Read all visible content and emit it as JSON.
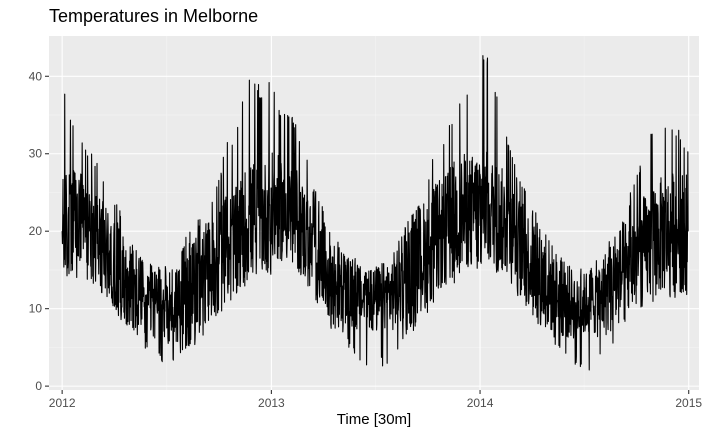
{
  "chart_data": {
    "type": "line",
    "title": "Temperatures in Melborne",
    "xlabel": "Time [30m]",
    "ylabel": "",
    "x_ticks": [
      "2012",
      "2013",
      "2014",
      "2015"
    ],
    "y_ticks": [
      0,
      10,
      20,
      30,
      40
    ],
    "xlim": [
      "2011-12-09",
      "2015-01-19"
    ],
    "ylim": [
      -0.5,
      45.2
    ],
    "grid": true,
    "legend": "none",
    "colors": {
      "line": "#000000",
      "panel": "#ebebeb",
      "grid": "#ffffff"
    },
    "series": [
      {
        "interval": "30 minutes",
        "x": [
          "2012-01-01",
          "2012-01-15",
          "2012-02-01",
          "2012-02-15",
          "2012-03-01",
          "2012-03-15",
          "2012-04-01",
          "2012-04-15",
          "2012-05-01",
          "2012-05-15",
          "2012-06-01",
          "2012-06-15",
          "2012-07-01",
          "2012-07-15",
          "2012-08-01",
          "2012-08-15",
          "2012-09-01",
          "2012-09-15",
          "2012-10-01",
          "2012-10-15",
          "2012-11-01",
          "2012-11-15",
          "2012-12-01",
          "2012-12-15",
          "2013-01-01",
          "2013-01-15",
          "2013-02-01",
          "2013-02-15",
          "2013-03-01",
          "2013-03-15",
          "2013-04-01",
          "2013-04-15",
          "2013-05-01",
          "2013-05-15",
          "2013-06-01",
          "2013-06-15",
          "2013-07-01",
          "2013-07-15",
          "2013-08-01",
          "2013-08-15",
          "2013-09-01",
          "2013-09-15",
          "2013-10-01",
          "2013-10-15",
          "2013-11-01",
          "2013-11-15",
          "2013-12-01",
          "2013-12-15",
          "2014-01-01",
          "2014-01-15",
          "2014-02-01",
          "2014-02-15",
          "2014-03-01",
          "2014-03-15",
          "2014-04-01",
          "2014-04-15",
          "2014-05-01",
          "2014-05-15",
          "2014-06-01",
          "2014-06-15",
          "2014-07-01",
          "2014-07-15",
          "2014-08-01",
          "2014-08-15",
          "2014-09-01",
          "2014-09-15",
          "2014-10-01",
          "2014-10-15",
          "2014-11-01",
          "2014-11-15",
          "2014-12-01",
          "2014-12-15",
          "2014-12-31"
        ],
        "max": [
          39.5,
          34.5,
          33.0,
          31.0,
          29.0,
          27.5,
          24.5,
          22.0,
          20.5,
          17.5,
          16.5,
          15.5,
          16.0,
          16.5,
          19.0,
          20.5,
          22.0,
          24.0,
          27.0,
          31.5,
          33.0,
          38.5,
          40.5,
          38.0,
          40.0,
          36.5,
          35.5,
          34.0,
          30.5,
          26.0,
          23.0,
          20.5,
          18.5,
          17.0,
          16.5,
          15.0,
          16.0,
          16.5,
          17.5,
          20.0,
          22.0,
          23.5,
          27.5,
          30.5,
          33.0,
          35.5,
          38.0,
          39.5,
          43.0,
          42.5,
          37.5,
          33.0,
          29.0,
          27.0,
          24.0,
          21.5,
          20.0,
          18.0,
          16.5,
          15.5,
          15.0,
          16.0,
          17.5,
          19.0,
          21.0,
          23.5,
          27.5,
          30.5,
          33.5,
          34.5,
          34.0,
          33.0,
          31.0
        ],
        "mean": [
          20.0,
          21.5,
          21.0,
          20.0,
          19.5,
          17.5,
          16.0,
          14.5,
          13.0,
          12.0,
          11.0,
          10.5,
          10.5,
          10.5,
          11.0,
          12.0,
          13.5,
          15.0,
          16.5,
          18.0,
          19.0,
          20.5,
          21.5,
          21.5,
          22.5,
          23.0,
          22.5,
          21.5,
          19.5,
          17.0,
          15.5,
          14.0,
          13.0,
          12.0,
          11.5,
          11.0,
          11.0,
          11.5,
          12.0,
          13.5,
          14.5,
          16.0,
          17.5,
          19.0,
          20.0,
          21.5,
          22.5,
          22.5,
          23.5,
          23.0,
          22.0,
          21.0,
          19.5,
          17.5,
          16.0,
          14.5,
          13.0,
          12.0,
          11.0,
          10.5,
          10.5,
          11.0,
          11.5,
          12.5,
          14.0,
          15.0,
          16.5,
          17.5,
          18.5,
          19.5,
          20.0,
          20.0,
          20.0
        ],
        "min": [
          12.5,
          13.5,
          13.5,
          13.0,
          12.0,
          11.0,
          9.5,
          8.0,
          6.5,
          5.5,
          4.0,
          3.0,
          2.5,
          3.0,
          3.5,
          4.5,
          6.0,
          7.5,
          9.0,
          10.5,
          11.5,
          12.0,
          13.0,
          13.5,
          14.0,
          15.5,
          15.0,
          14.0,
          12.5,
          10.5,
          9.0,
          7.5,
          6.0,
          5.0,
          3.5,
          2.5,
          1.5,
          2.5,
          3.5,
          5.0,
          6.5,
          8.0,
          9.5,
          11.0,
          12.0,
          13.0,
          14.0,
          14.5,
          15.0,
          15.0,
          14.5,
          13.5,
          12.0,
          10.5,
          9.0,
          7.5,
          6.0,
          4.5,
          3.5,
          2.5,
          2.0,
          1.5,
          3.0,
          4.5,
          6.0,
          7.5,
          8.5,
          9.5,
          10.5,
          11.0,
          11.5,
          11.0,
          11.5
        ]
      }
    ]
  }
}
